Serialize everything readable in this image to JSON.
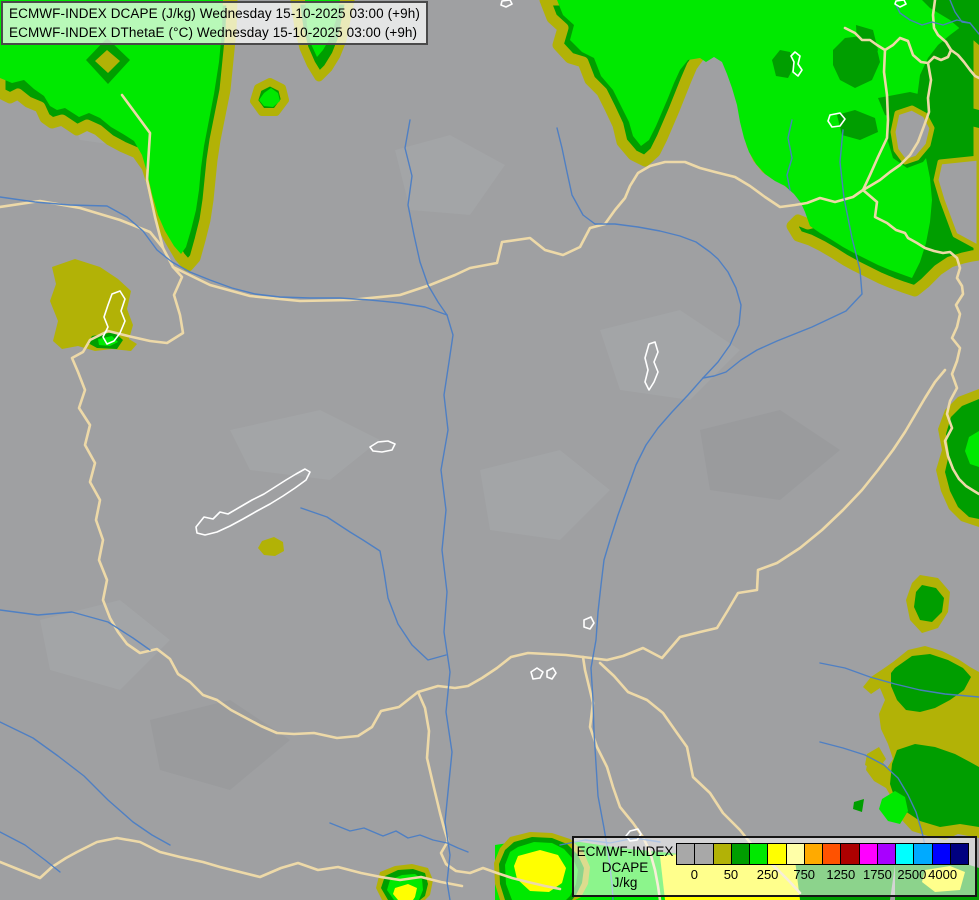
{
  "header": {
    "line1": "ECMWF-INDEX DCAPE (J/kg) Wednesday 15-10-2025 03:00 (+9h)",
    "line2": "ECMWF-INDEX DThetaE (°C) Wednesday 15-10-2025 03:00 (+9h)"
  },
  "legend": {
    "model": "ECMWF-INDEX",
    "parameter": "DCAPE",
    "units": "J/kg",
    "tick_labels": [
      "0",
      "50",
      "250",
      "750",
      "1250",
      "1750",
      "2500",
      "4000"
    ],
    "tick_positions_pct": [
      6.25,
      18.75,
      31.25,
      43.75,
      56.25,
      68.75,
      80.5,
      91
    ],
    "swatch_colors": [
      "#a8a8a8",
      "#a8a8a8",
      "#b2b206",
      "#009e00",
      "#00e900",
      "#ffff00",
      "#ffffa8",
      "#ffaa00",
      "#ff5200",
      "#ad0000",
      "#ff00ff",
      "#a800ff",
      "#00ffff",
      "#00aaff",
      "#0000ff",
      "#000080"
    ]
  },
  "map": {
    "colors": {
      "land": "#9fa0a2",
      "country_border": "#edd9a8",
      "river": "#4b7ec5",
      "lake_outline": "#ffffff",
      "dcape_0_50_olive": "#b2b206",
      "dcape_50_100_darkgreen": "#009e00",
      "dcape_100_250_green": "#00e900",
      "dcape_250_500_yellow": "#ffff00"
    }
  }
}
